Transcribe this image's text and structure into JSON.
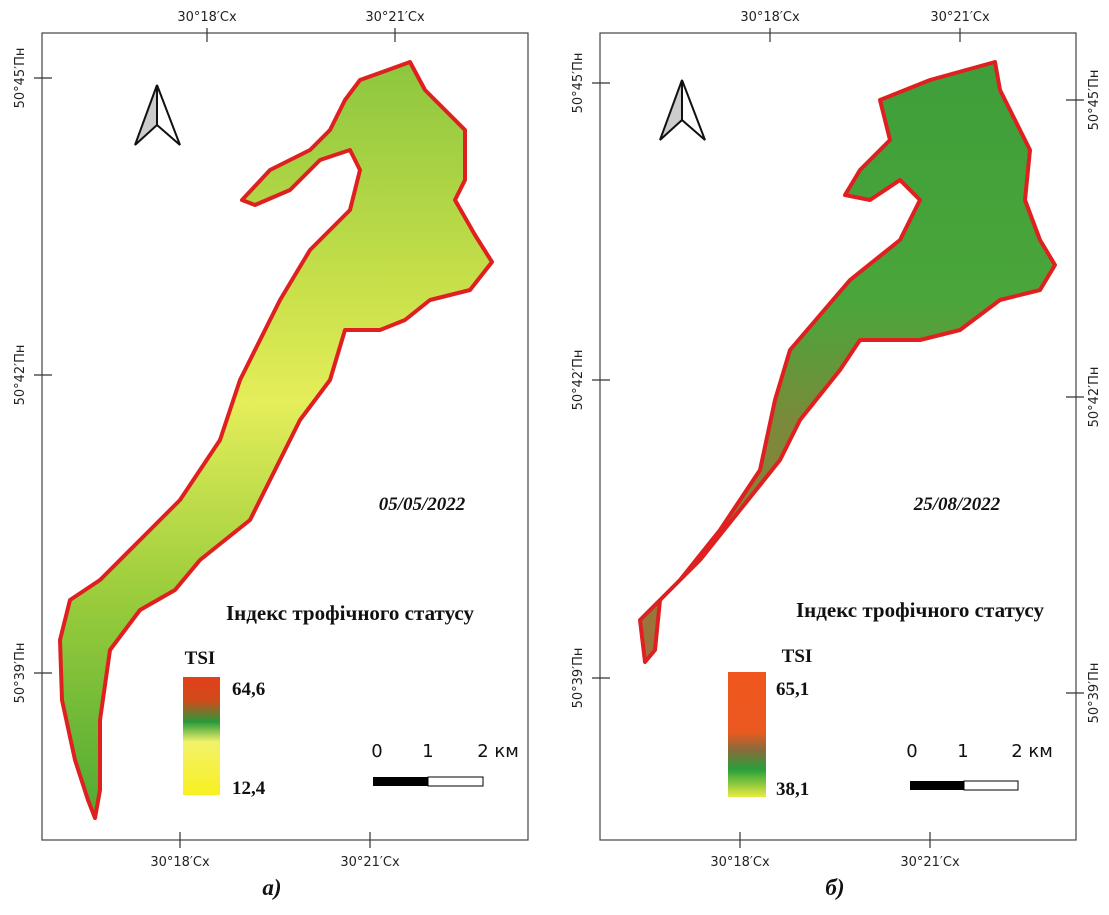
{
  "panels": [
    {
      "caption": "а)",
      "date": "05/05/2022",
      "legend_title": "Індекс трофічного статусу",
      "legend_label": "TSI",
      "legend_max": "64,6",
      "legend_min": "12,4",
      "scale_labels": [
        "0",
        "1",
        "2 км"
      ],
      "top_ticks": [
        "30°18′Сх",
        "30°21′Сх"
      ],
      "bottom_ticks": [
        "30°18′Сх",
        "30°21′Сх"
      ],
      "left_ticks": [
        "50°45′Пн",
        "50°42′Пн",
        "50°39′Пн"
      ]
    },
    {
      "caption": "б)",
      "date": "25/08/2022",
      "legend_title": "Індекс трофічного статусу",
      "legend_label": "TSI",
      "legend_max": "65,1",
      "legend_min": "38,1",
      "scale_labels": [
        "0",
        "1",
        "2 км"
      ],
      "top_ticks": [
        "30°18′Сх",
        "30°21′Сх"
      ],
      "bottom_ticks": [
        "30°18′Сх",
        "30°21′Сх"
      ],
      "left_ticks": [
        "50°45′Пн",
        "50°42′Пн",
        "50°39′Пн"
      ],
      "right_ticks": [
        "50°45′Пн",
        "50°42′Пн",
        "50°39′Пн"
      ]
    }
  ]
}
